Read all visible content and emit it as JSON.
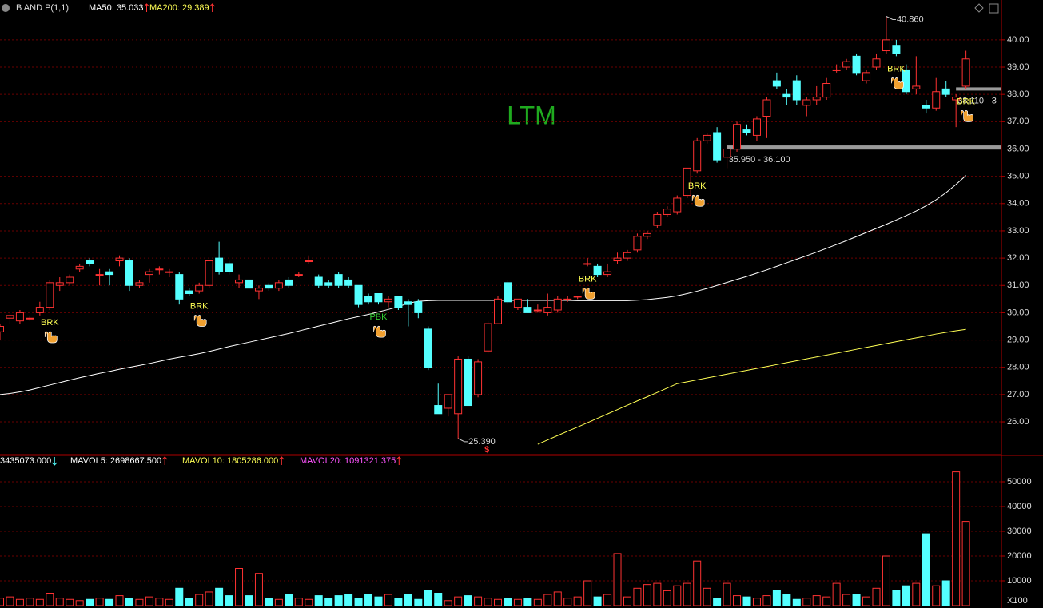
{
  "chart_data": {
    "type": "candlestick",
    "title": "B AND P(1,1)",
    "ma_labels": [
      "MA50: 35.033",
      "MA200: 29.389"
    ],
    "watermark": "LTM",
    "up_color": "#ff3232",
    "down_color": "#54ffff",
    "ma_colors": [
      "#ffffff",
      "#ffff54"
    ],
    "grid": true,
    "open": [
      29.3,
      29.8,
      29.7,
      29.8,
      30.0,
      30.2,
      31.0,
      31.1,
      31.6,
      31.9,
      31.4,
      31.5,
      31.9,
      31.9,
      31.0,
      31.4,
      31.6,
      31.5,
      31.4,
      30.8,
      30.8,
      31.0,
      32.0,
      31.8,
      31.1,
      31.2,
      30.8,
      31.0,
      30.9,
      31.2,
      31.4,
      31.9,
      31.3,
      31.1,
      31.4,
      31.2,
      31.0,
      30.6,
      30.7,
      30.4,
      30.6,
      30.4,
      30.4,
      29.4,
      26.6,
      26.5,
      26.3,
      28.3,
      27.0,
      28.6,
      29.6,
      31.1,
      30.2,
      30.2,
      30.1,
      30.0,
      30.1,
      30.5,
      30.6,
      31.8,
      31.7,
      31.4,
      31.9,
      32.0,
      32.3,
      32.8,
      33.2,
      33.6,
      33.7,
      34.3,
      35.2,
      36.3,
      36.6,
      35.7,
      36.0,
      36.7,
      36.5,
      37.2,
      38.5,
      38.0,
      38.5,
      37.6,
      37.8,
      37.9,
      38.9,
      39.0,
      39.4,
      38.5,
      39.0,
      39.6,
      39.8,
      38.9,
      38.2,
      37.6,
      37.5,
      38.2,
      37.8,
      38.3
    ],
    "high": [
      29.6,
      30.0,
      30.1,
      29.9,
      30.4,
      31.2,
      31.3,
      31.4,
      31.8,
      32.0,
      31.6,
      31.6,
      32.1,
      32.0,
      31.2,
      31.6,
      31.7,
      31.6,
      31.5,
      30.9,
      31.1,
      31.9,
      32.6,
      31.9,
      31.4,
      31.3,
      31.0,
      31.1,
      31.2,
      31.3,
      31.5,
      32.1,
      31.4,
      31.2,
      31.5,
      31.3,
      31.0,
      30.7,
      30.7,
      30.6,
      30.6,
      30.5,
      30.5,
      29.5,
      27.4,
      27.0,
      28.4,
      28.4,
      28.3,
      29.7,
      30.6,
      31.2,
      30.5,
      30.5,
      30.3,
      30.7,
      30.6,
      30.6,
      30.6,
      32.0,
      31.8,
      31.8,
      32.2,
      32.3,
      32.9,
      33.0,
      33.7,
      33.9,
      34.3,
      35.3,
      36.4,
      36.6,
      36.8,
      36.1,
      37.0,
      36.9,
      37.2,
      37.9,
      38.8,
      38.2,
      38.7,
      37.9,
      38.3,
      38.6,
      39.1,
      39.3,
      39.5,
      38.9,
      39.5,
      40.86,
      40.0,
      39.1,
      39.4,
      37.8,
      38.6,
      38.5,
      38.0,
      39.6
    ],
    "low": [
      29.0,
      29.6,
      29.6,
      29.7,
      29.9,
      30.1,
      30.8,
      31.0,
      31.5,
      31.7,
      31.0,
      31.0,
      31.7,
      30.8,
      30.9,
      31.1,
      31.4,
      31.3,
      30.3,
      30.6,
      30.7,
      30.9,
      31.4,
      31.4,
      30.9,
      30.8,
      30.5,
      30.8,
      30.8,
      30.9,
      31.3,
      31.8,
      30.9,
      30.9,
      30.9,
      30.9,
      30.2,
      30.3,
      30.3,
      30.2,
      30.1,
      29.5,
      29.8,
      27.9,
      26.3,
      26.2,
      25.39,
      26.6,
      26.9,
      28.5,
      29.6,
      30.3,
      30.1,
      30.0,
      30.0,
      29.9,
      30.0,
      30.4,
      30.5,
      31.7,
      31.3,
      31.3,
      31.8,
      31.9,
      32.2,
      32.7,
      33.1,
      33.5,
      33.6,
      34.2,
      35.1,
      36.2,
      35.5,
      35.3,
      35.9,
      36.5,
      36.3,
      36.4,
      38.2,
      37.6,
      37.6,
      37.2,
      37.6,
      37.8,
      38.8,
      38.9,
      38.7,
      38.4,
      38.9,
      39.5,
      39.4,
      38.0,
      38.0,
      37.3,
      37.4,
      37.9,
      36.8,
      38.2
    ],
    "close": [
      29.5,
      29.9,
      30.0,
      29.8,
      30.2,
      31.1,
      31.1,
      31.3,
      31.7,
      31.8,
      31.4,
      31.4,
      32.0,
      31.0,
      31.1,
      31.5,
      31.6,
      31.5,
      30.5,
      30.7,
      31.0,
      31.9,
      31.5,
      31.5,
      31.2,
      30.9,
      30.9,
      30.9,
      31.1,
      31.0,
      31.4,
      31.9,
      31.0,
      31.0,
      31.0,
      31.0,
      30.3,
      30.4,
      30.4,
      30.5,
      30.2,
      30.3,
      30.0,
      28.0,
      26.3,
      27.0,
      28.3,
      26.6,
      28.2,
      29.6,
      30.5,
      30.4,
      30.5,
      30.0,
      30.1,
      30.2,
      30.5,
      30.5,
      30.6,
      31.8,
      31.4,
      31.5,
      32.0,
      32.2,
      32.8,
      32.9,
      33.6,
      33.8,
      34.2,
      35.3,
      36.3,
      36.5,
      35.6,
      36.0,
      36.9,
      36.6,
      37.1,
      37.8,
      38.3,
      37.9,
      37.8,
      37.8,
      37.9,
      38.4,
      38.9,
      39.2,
      38.8,
      38.8,
      39.3,
      40.0,
      39.5,
      38.1,
      38.3,
      37.5,
      38.1,
      38.0,
      37.9,
      39.3
    ],
    "ma50": [
      27.0,
      27.04,
      27.1,
      27.17,
      27.26,
      27.35,
      27.44,
      27.53,
      27.62,
      27.7,
      27.78,
      27.85,
      27.93,
      28.0,
      28.07,
      28.14,
      28.22,
      28.3,
      28.37,
      28.43,
      28.5,
      28.58,
      28.67,
      28.76,
      28.84,
      28.92,
      29.0,
      29.08,
      29.16,
      29.24,
      29.33,
      29.42,
      29.51,
      29.6,
      29.69,
      29.78,
      29.86,
      29.94,
      30.03,
      30.12,
      30.22,
      30.35,
      30.42,
      30.44,
      30.45,
      30.45,
      30.45,
      30.45,
      30.45,
      30.45,
      30.45,
      30.45,
      30.45,
      30.45,
      30.45,
      30.45,
      30.45,
      30.45,
      30.44,
      30.44,
      30.44,
      30.44,
      30.44,
      30.44,
      30.46,
      30.48,
      30.52,
      30.56,
      30.62,
      30.7,
      30.79,
      30.89,
      31.0,
      31.11,
      31.22,
      31.33,
      31.45,
      31.57,
      31.7,
      31.83,
      31.96,
      32.09,
      32.22,
      32.36,
      32.5,
      32.64,
      32.79,
      32.94,
      33.09,
      33.24,
      33.4,
      33.56,
      33.73,
      33.92,
      34.14,
      34.4,
      34.7,
      35.03
    ],
    "ma200": [
      null,
      null,
      null,
      null,
      null,
      null,
      null,
      null,
      null,
      null,
      null,
      null,
      null,
      null,
      null,
      null,
      null,
      null,
      null,
      null,
      null,
      null,
      null,
      null,
      null,
      null,
      null,
      null,
      null,
      null,
      null,
      null,
      null,
      null,
      null,
      null,
      null,
      null,
      null,
      null,
      null,
      null,
      null,
      null,
      null,
      null,
      null,
      null,
      null,
      null,
      null,
      null,
      null,
      null,
      25.18,
      25.34,
      25.5,
      25.66,
      25.81,
      25.97,
      26.13,
      26.29,
      26.45,
      26.61,
      26.77,
      26.92,
      27.08,
      27.24,
      27.4,
      27.47,
      27.54,
      27.61,
      27.68,
      27.75,
      27.82,
      27.89,
      27.96,
      28.03,
      28.1,
      28.17,
      28.24,
      28.31,
      28.38,
      28.45,
      28.52,
      28.59,
      28.66,
      28.73,
      28.8,
      28.87,
      28.94,
      29.01,
      29.08,
      29.15,
      29.22,
      29.28,
      29.34,
      29.39
    ],
    "volume": [
      3000,
      3500,
      2500,
      3000,
      2500,
      5000,
      3000,
      2500,
      2000,
      2500,
      3000,
      2500,
      4000,
      3000,
      2500,
      3500,
      3000,
      2500,
      7000,
      3000,
      4500,
      5500,
      7000,
      4000,
      15000,
      4000,
      13000,
      3000,
      2500,
      4500,
      3000,
      2500,
      4000,
      3000,
      4000,
      4500,
      3000,
      4500,
      3500,
      4500,
      3000,
      4500,
      2500,
      6000,
      5000,
      2000,
      3500,
      4000,
      3500,
      3000,
      2500,
      3000,
      2500,
      3000,
      2500,
      4500,
      5500,
      3000,
      3500,
      10000,
      3500,
      4500,
      21000,
      3500,
      7000,
      8500,
      9000,
      6000,
      8000,
      9000,
      18000,
      7000,
      3000,
      9000,
      4000,
      3500,
      3000,
      4000,
      6000,
      4500,
      2500,
      3000,
      4000,
      3500,
      9000,
      4500,
      4500,
      3500,
      7000,
      20000,
      6000,
      8000,
      9000,
      29000,
      8000,
      10000,
      54000,
      34000
    ],
    "ylim": [
      24.83,
      41.46
    ],
    "yticks": [
      {
        "value": 26,
        "label": "26.00"
      },
      {
        "value": 27,
        "label": "27.00"
      },
      {
        "value": 28,
        "label": "28.00"
      },
      {
        "value": 29,
        "label": "29.00"
      },
      {
        "value": 30,
        "label": "30.00"
      },
      {
        "value": 31,
        "label": "31.00"
      },
      {
        "value": 32,
        "label": "32.00"
      },
      {
        "value": 33,
        "label": "33.00"
      },
      {
        "value": 34,
        "label": "34.00"
      },
      {
        "value": 35,
        "label": "35.00"
      },
      {
        "value": 36,
        "label": "36.00"
      },
      {
        "value": 37,
        "label": "37.00"
      },
      {
        "value": 38,
        "label": "38.00"
      },
      {
        "value": 39,
        "label": "39.00"
      },
      {
        "value": 40,
        "label": "40.00"
      }
    ],
    "y2lim": [
      0,
      60000
    ],
    "y2ticks": [
      10000,
      20000,
      30000,
      40000,
      50000
    ],
    "y2_unit": "X100",
    "volume_header": [
      "3435073.000",
      "MAVOL5: 2698667.500",
      "MAVOL10: 1805286.000",
      "MAVOL20: 1091321.375"
    ],
    "volume_header_colors": [
      "#ffffff",
      "#ffffff",
      "#ffff54",
      "#ff54ff"
    ],
    "extremes": [
      {
        "candle": 89,
        "value": 40.86,
        "label": "40.860"
      },
      {
        "candle": 46,
        "value": 25.39,
        "label": "25.390"
      }
    ],
    "event_marker": {
      "candle": 46,
      "label": "$"
    },
    "zones": [
      {
        "start": 73,
        "low": 35.95,
        "high": 36.1,
        "label": "35.950 - 36.100"
      },
      {
        "start": 96,
        "low": 38.11,
        "label": "38.110 - 3"
      }
    ],
    "signals": [
      {
        "candle": 5,
        "label": "BRK",
        "color": "#ffff54"
      },
      {
        "candle": 20,
        "label": "BRK",
        "color": "#ffff54"
      },
      {
        "candle": 38,
        "label": "PBK",
        "color": "#32cd32"
      },
      {
        "candle": 59,
        "label": "BRK",
        "color": "#ffff54"
      },
      {
        "candle": 70,
        "label": "BRK",
        "color": "#ffff54"
      },
      {
        "candle": 90,
        "label": "BRK",
        "color": "#ffff54"
      },
      {
        "candle": 97,
        "label": "BRK",
        "color": "#ffff54"
      }
    ]
  }
}
